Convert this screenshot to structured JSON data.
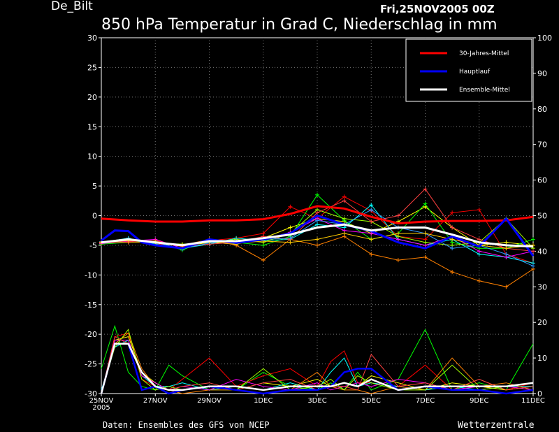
{
  "header": {
    "station": "De_Bilt",
    "date": "Fri,25NOV2005 00Z",
    "title": "850 hPa Temperatur in Grad C, Niederschlag in mm"
  },
  "footer": {
    "source": "Daten: Ensembles des GFS von NCEP",
    "brand": "Wetterzentrale"
  },
  "chart_data": {
    "type": "line",
    "grid": true,
    "legend_position": "top-right",
    "x_range_days": [
      0,
      16
    ],
    "x_ticks": [
      {
        "day": 0,
        "label": "25NOV",
        "sub": "2005"
      },
      {
        "day": 2,
        "label": "27NOV",
        "sub": ""
      },
      {
        "day": 4,
        "label": "29NOV",
        "sub": ""
      },
      {
        "day": 6,
        "label": "1DEC",
        "sub": ""
      },
      {
        "day": 8,
        "label": "3DEC",
        "sub": ""
      },
      {
        "day": 10,
        "label": "5DEC",
        "sub": ""
      },
      {
        "day": 12,
        "label": "7DEC",
        "sub": ""
      },
      {
        "day": 14,
        "label": "9DEC",
        "sub": ""
      },
      {
        "day": 16,
        "label": "11DEC",
        "sub": ""
      }
    ],
    "y_left": {
      "min": -30,
      "max": 30,
      "ticks": [
        "30",
        "25",
        "20",
        "15",
        "10",
        "5",
        "0",
        "-5",
        "-10",
        "-15",
        "-20",
        "-25",
        "-30"
      ]
    },
    "y_right": {
      "min": 0,
      "max": 100,
      "ticks": [
        "100",
        "90",
        "80",
        "70",
        "60",
        "50",
        "40",
        "30",
        "20",
        "10",
        "0"
      ]
    },
    "temperature_series": [
      {
        "name": "30-Jahres-Mittel",
        "color": "#ff0000",
        "day": [
          0,
          1,
          2,
          3,
          4,
          5,
          6,
          7,
          8,
          9,
          10,
          11,
          12,
          13,
          14,
          15,
          16
        ],
        "values": [
          -0.5,
          -0.8,
          -1.0,
          -1.0,
          -0.8,
          -0.8,
          -0.6,
          0.3,
          1.6,
          1.2,
          -0.2,
          -1.3,
          -1.0,
          -0.9,
          -0.9,
          -0.8,
          -0.2
        ]
      },
      {
        "name": "Hauptlauf",
        "color": "#0000ff",
        "day": [
          0,
          0.5,
          1,
          1.5,
          2,
          3,
          4,
          5,
          6,
          7,
          8,
          9,
          10,
          11,
          12,
          13,
          14,
          15,
          16
        ],
        "values": [
          -4.2,
          -2.5,
          -2.6,
          -4.5,
          -5.0,
          -5.5,
          -4.0,
          -4.6,
          -4.0,
          -3.0,
          0.0,
          -1.5,
          -2.6,
          -4.5,
          -5.5,
          -3.5,
          -5.2,
          -0.5,
          -6.8
        ]
      },
      {
        "name": "Ensemble-Mittel",
        "color": "#ffffff",
        "day": [
          0,
          1,
          2,
          3,
          4,
          5,
          6,
          7,
          8,
          9,
          10,
          11,
          12,
          13,
          14,
          15,
          16
        ],
        "values": [
          -4.5,
          -4.0,
          -4.5,
          -5.0,
          -4.3,
          -4.3,
          -3.8,
          -3.2,
          -2.0,
          -1.5,
          -2.5,
          -2.0,
          -2.0,
          -3.2,
          -4.5,
          -5.0,
          -5.2
        ]
      }
    ],
    "ensemble_members": [
      {
        "color": "#ffff00",
        "values": [
          -4.6,
          -4.2,
          -4.5,
          -5.2,
          -4.5,
          -4.8,
          -3.8,
          -2.0,
          -0.5,
          -1.0,
          -3.0,
          -1.0,
          1.5,
          -2.0,
          -5.0,
          -4.5,
          -5.0
        ]
      },
      {
        "color": "#ff0000",
        "values": [
          -4.4,
          -4.0,
          -4.8,
          -5.0,
          -4.2,
          -3.8,
          -3.0,
          1.5,
          -0.5,
          3.2,
          0.8,
          -3.5,
          -4.0,
          0.5,
          1.0,
          -6.5,
          -8.0
        ]
      },
      {
        "color": "#00ff00",
        "values": [
          -4.8,
          -4.5,
          -4.3,
          -5.8,
          -4.0,
          -4.5,
          -5.0,
          -3.5,
          3.5,
          -0.8,
          -4.0,
          -3.0,
          2.0,
          -4.5,
          -5.5,
          -5.5,
          -4.0
        ]
      },
      {
        "color": "#00ffff",
        "values": [
          -4.5,
          -3.8,
          -4.8,
          -5.5,
          -4.8,
          -3.8,
          -4.2,
          -4.0,
          -1.5,
          -2.0,
          1.8,
          -4.0,
          -5.0,
          -4.0,
          -6.5,
          -7.0,
          -8.0
        ]
      },
      {
        "color": "#ff8000",
        "values": [
          -4.4,
          -4.5,
          -4.5,
          -5.0,
          -4.0,
          -5.0,
          -7.5,
          -4.0,
          -5.0,
          -3.5,
          -6.5,
          -7.5,
          -7.0,
          -9.5,
          -11.0,
          -12.0,
          -9.0
        ]
      },
      {
        "color": "#ff00ff",
        "values": [
          -4.7,
          -4.3,
          -4.0,
          -5.5,
          -4.2,
          -4.5,
          -4.0,
          -2.8,
          -0.5,
          -2.5,
          -3.0,
          -4.0,
          -5.0,
          -3.5,
          -6.0,
          -7.0,
          -6.0
        ]
      },
      {
        "color": "#a0ff00",
        "values": [
          -4.5,
          -4.0,
          -4.6,
          -4.8,
          -4.5,
          -4.0,
          -4.5,
          -3.0,
          1.0,
          -0.5,
          -1.0,
          -3.5,
          -4.5,
          -5.0,
          -4.5,
          -0.5,
          -5.5
        ]
      },
      {
        "color": "#ff4040",
        "values": [
          -4.6,
          -4.4,
          -4.2,
          -5.2,
          -4.8,
          -4.5,
          -3.5,
          -4.0,
          0.5,
          2.5,
          -1.0,
          0.0,
          4.5,
          -2.0,
          -4.0,
          -5.5,
          -6.0
        ]
      },
      {
        "color": "#3399ff",
        "values": [
          -4.4,
          -3.9,
          -4.5,
          -5.6,
          -4.6,
          -4.2,
          -4.0,
          -3.8,
          -0.8,
          -1.5,
          1.0,
          -2.0,
          -3.0,
          -5.5,
          -5.0,
          -6.5,
          -8.5
        ]
      },
      {
        "color": "#ffcc00",
        "values": [
          -4.5,
          -4.2,
          -4.4,
          -5.0,
          -4.4,
          -4.6,
          -4.3,
          -4.5,
          -4.0,
          -3.0,
          -4.0,
          -3.0,
          -3.0,
          -4.0,
          -5.0,
          -5.5,
          -5.0
        ]
      }
    ],
    "precip_series": [
      {
        "name": "Hauptlauf",
        "color": "#0000ff",
        "day": [
          0,
          0.5,
          1,
          1.5,
          2,
          2.5,
          3,
          4,
          5,
          6,
          7,
          8,
          8.5,
          9,
          9.5,
          10,
          11,
          12,
          13,
          14,
          15,
          16
        ],
        "values": [
          0,
          14,
          14,
          1,
          2,
          0,
          1,
          2,
          1,
          0,
          1,
          1,
          2,
          6,
          7,
          7,
          1,
          2,
          1,
          1,
          0,
          1
        ]
      },
      {
        "name": "Ensemble-Mittel",
        "color": "#ffffff",
        "day": [
          0,
          0.5,
          1,
          1.5,
          2,
          2.5,
          3,
          4,
          5,
          6,
          7,
          8,
          8.5,
          9,
          9.5,
          10,
          11,
          12,
          13,
          14,
          15,
          16
        ],
        "values": [
          0,
          14,
          14,
          6,
          2,
          1,
          1,
          2,
          2,
          1,
          2,
          2,
          2,
          3,
          2,
          4,
          1,
          2,
          2,
          2,
          2,
          3
        ]
      }
    ],
    "precip_members": [
      {
        "color": "#00ff00",
        "values": [
          7,
          19,
          6,
          2,
          1,
          8,
          5,
          1,
          1,
          6,
          2,
          1,
          3,
          1,
          6,
          1,
          4,
          18,
          1,
          3,
          1,
          14
        ]
      },
      {
        "color": "#ff0000",
        "values": [
          0,
          16,
          17,
          4,
          2,
          1,
          4,
          10,
          2,
          5,
          7,
          2,
          9,
          12,
          3,
          3,
          2,
          8,
          1,
          2,
          1,
          3
        ]
      },
      {
        "color": "#ffff00",
        "values": [
          0,
          15,
          16,
          6,
          3,
          1,
          1,
          2,
          1,
          3,
          2,
          4,
          2,
          3,
          2,
          5,
          3,
          1,
          3,
          2,
          1,
          2
        ]
      },
      {
        "color": "#00ffff",
        "values": [
          1,
          13,
          15,
          5,
          2,
          2,
          3,
          1,
          2,
          1,
          3,
          1,
          6,
          10,
          2,
          3,
          2,
          1,
          2,
          1,
          2,
          2
        ]
      },
      {
        "color": "#ff8000",
        "values": [
          0,
          14,
          17,
          7,
          2,
          1,
          0,
          1,
          1,
          0,
          1,
          6,
          2,
          1,
          1,
          0,
          2,
          1,
          10,
          2,
          3,
          1
        ]
      },
      {
        "color": "#ff00ff",
        "values": [
          0,
          15,
          15,
          5,
          3,
          1,
          2,
          1,
          4,
          2,
          1,
          3,
          1,
          2,
          3,
          2,
          4,
          3,
          1,
          2,
          2,
          1
        ]
      },
      {
        "color": "#a0ff00",
        "values": [
          0,
          13,
          18,
          4,
          1,
          2,
          1,
          2,
          1,
          7,
          1,
          2,
          4,
          1,
          5,
          3,
          1,
          1,
          8,
          1,
          2,
          3
        ]
      },
      {
        "color": "#ff4040",
        "values": [
          0,
          16,
          14,
          6,
          2,
          1,
          2,
          3,
          1,
          3,
          4,
          1,
          2,
          2,
          1,
          11,
          2,
          3,
          1,
          4,
          1,
          2
        ]
      }
    ]
  }
}
